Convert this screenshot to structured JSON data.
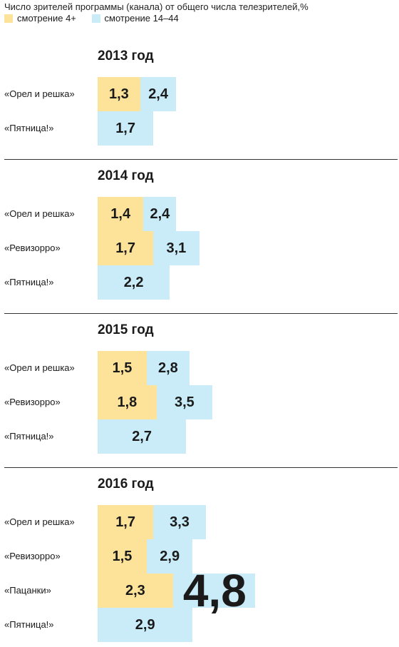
{
  "header": {
    "subtitle": "Число зрителей программы (канала) от общего числа телезрителей,%",
    "legend": [
      {
        "label": "смотрение 4+",
        "color": "#fde39a"
      },
      {
        "label": "смотрение 14–44",
        "color": "#c9ecf8"
      }
    ]
  },
  "chart_data": {
    "type": "bar",
    "orientation": "horizontal",
    "legend_placement": "top-left",
    "series_colors": {
      "4+": "#fde39a",
      "14-44": "#c9ecf8"
    },
    "groups": [
      {
        "title": "2013 год",
        "rows": [
          {
            "label": "«Орел и решка»",
            "v4": 1.3,
            "v4_label": "1,3",
            "v14": 2.4,
            "v14_label": "2,4"
          },
          {
            "label": "«Пятница!»",
            "v4": null,
            "v4_label": "",
            "v14": 1.7,
            "v14_label": "1,7"
          }
        ]
      },
      {
        "title": "2014 год",
        "rows": [
          {
            "label": "«Орел и решка»",
            "v4": 1.4,
            "v4_label": "1,4",
            "v14": 2.4,
            "v14_label": "2,4"
          },
          {
            "label": "«Ревизорро»",
            "v4": 1.7,
            "v4_label": "1,7",
            "v14": 3.1,
            "v14_label": "3,1"
          },
          {
            "label": "«Пятница!»",
            "v4": null,
            "v4_label": "",
            "v14": 2.2,
            "v14_label": "2,2"
          }
        ]
      },
      {
        "title": "2015 год",
        "rows": [
          {
            "label": "«Орел и решка»",
            "v4": 1.5,
            "v4_label": "1,5",
            "v14": 2.8,
            "v14_label": "2,8"
          },
          {
            "label": "«Ревизорро»",
            "v4": 1.8,
            "v4_label": "1,8",
            "v14": 3.5,
            "v14_label": "3,5"
          },
          {
            "label": "«Пятница!»",
            "v4": null,
            "v4_label": "",
            "v14": 2.7,
            "v14_label": "2,7"
          }
        ]
      },
      {
        "title": "2016 год",
        "rows": [
          {
            "label": "«Орел и решка»",
            "v4": 1.7,
            "v4_label": "1,7",
            "v14": 3.3,
            "v14_label": "3,3"
          },
          {
            "label": "«Ревизорро»",
            "v4": 1.5,
            "v4_label": "1,5",
            "v14": 2.9,
            "v14_label": "2,9"
          },
          {
            "label": "«Пацанки»",
            "v4": 2.3,
            "v4_label": "2,3",
            "v14": 4.8,
            "v14_label": "4,8",
            "highlight": true
          },
          {
            "label": "«Пятница!»",
            "v4": null,
            "v4_label": "",
            "v14": 2.9,
            "v14_label": "2,9"
          }
        ]
      }
    ]
  }
}
